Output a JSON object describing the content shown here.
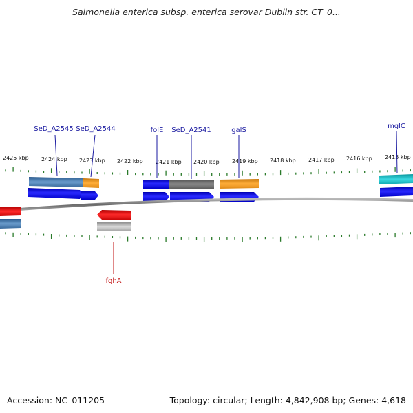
{
  "title": "Salmonella enterica subsp. enterica serovar Dublin str. CT_0...",
  "footer": {
    "accession": "Accession: NC_011205",
    "stats": "Topology: circular; Length: 4,842,908 bp; Genes: 4,618"
  },
  "scale_labels": [
    "2425 kbp",
    "2424 kbp",
    "2423 kbp",
    "2422 kbp",
    "2421 kbp",
    "2420 kbp",
    "2419 kbp",
    "2418 kbp",
    "2417 kbp",
    "2416 kbp",
    "2415 kbp"
  ],
  "gene_labels_top": [
    "SeD_A2545",
    "SeD_A2544",
    "folE",
    "SeD_A2541",
    "galS",
    "mglC"
  ],
  "gene_labels_bottom": [
    "fghA"
  ],
  "colors": {
    "cds": "#0a0ae6",
    "cog_blue": "#4a82b8",
    "cog_orange": "#f59a1a",
    "cog_gray": "#707070",
    "cog_cyan": "#18c0c8",
    "cog_red": "#e81010",
    "cog_lightgray": "#b8b8b8",
    "label": "#1a1aa0",
    "label_red": "#c01010",
    "tick": "#2a7a2a",
    "backbone": "#8a8a8a"
  }
}
